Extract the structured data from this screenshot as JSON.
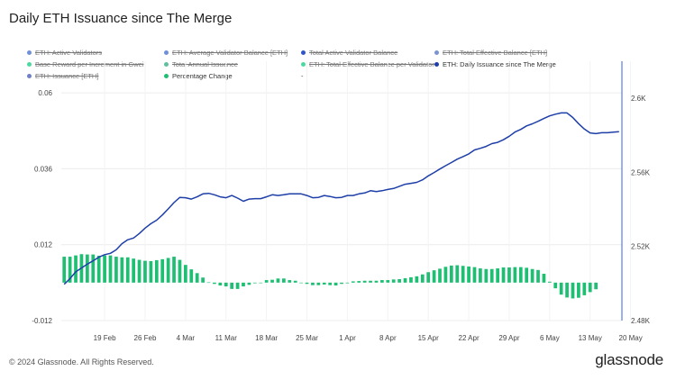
{
  "chart_data": {
    "type": "line",
    "title": "Daily ETH Issuance since The Merge",
    "legend": [
      {
        "label": "ETH: Active Validators",
        "color": "#6f8fd8",
        "active": false
      },
      {
        "label": "ETH: Average Validator Balance [ETH]",
        "color": "#6f8fd8",
        "active": false
      },
      {
        "label": "Total Active Validator Balance",
        "color": "#2f55c6",
        "active": false
      },
      {
        "label": "ETH: Total Effective Balance [ETH]",
        "color": "#7d94d0",
        "active": false
      },
      {
        "label": "Base Reward per Increment in Gwei",
        "color": "#4dd8a0",
        "active": false
      },
      {
        "label": "Total Annual Issuance",
        "color": "#5fbfa0",
        "active": false
      },
      {
        "label": "ETH: Total Effective Balance per Validator",
        "color": "#4dd8a0",
        "active": false
      },
      {
        "label": "ETH: Daily Issuance since The Merge",
        "color": "#1e3fa8",
        "active": true
      },
      {
        "label": "ETH: Issuance [ETH]",
        "color": "#6f7fc8",
        "active": false
      },
      {
        "label": "Percentage Change",
        "color": "#1fbf73",
        "active": true
      },
      {
        "label": "-",
        "color": "",
        "active": true
      }
    ],
    "x_ticks": [
      "19 Feb",
      "26 Feb",
      "4 Mar",
      "11 Mar",
      "18 Mar",
      "25 Mar",
      "1 Apr",
      "8 Apr",
      "15 Apr",
      "22 Apr",
      "29 Apr",
      "6 May",
      "13 May",
      "20 May"
    ],
    "start_date": "2024-02-12",
    "left_axis": {
      "ticks": [
        "0.06",
        "0.036",
        "0.012",
        "-0.012"
      ],
      "tick_values": [
        0.06,
        0.036,
        0.012,
        -0.012
      ],
      "range": [
        -0.012,
        0.07
      ]
    },
    "right_axis": {
      "ticks": [
        "2.6K",
        "2.56K",
        "2.52K",
        "2.48K"
      ],
      "tick_values": [
        2600,
        2560,
        2520,
        2480
      ],
      "range": [
        2480,
        2620
      ]
    },
    "series": [
      {
        "name": "ETH: Daily Issuance since The Merge",
        "axis": "right",
        "color": "#1e3fa8",
        "values": [
          2499.6,
          2502.6,
          2506.3,
          2508.4,
          2510.5,
          2512.3,
          2514.2,
          2515.6,
          2516.3,
          2518.2,
          2521.5,
          2523.6,
          2524.6,
          2527.0,
          2529.9,
          2532.3,
          2534.2,
          2537.0,
          2540.3,
          2543.7,
          2546.5,
          2546.3,
          2545.6,
          2546.8,
          2548.4,
          2548.7,
          2547.9,
          2546.8,
          2546.3,
          2547.5,
          2546.1,
          2544.4,
          2545.6,
          2545.8,
          2545.8,
          2546.8,
          2547.9,
          2547.5,
          2547.9,
          2548.4,
          2548.4,
          2548.4,
          2547.5,
          2546.3,
          2546.5,
          2547.5,
          2547.0,
          2546.3,
          2546.5,
          2547.5,
          2547.5,
          2548.4,
          2548.9,
          2550.1,
          2549.6,
          2550.1,
          2550.8,
          2551.3,
          2552.5,
          2553.6,
          2554.1,
          2554.6,
          2556.0,
          2558.1,
          2559.9,
          2561.8,
          2563.6,
          2565.3,
          2567.1,
          2568.5,
          2570.0,
          2572.1,
          2573.0,
          2574.0,
          2575.5,
          2576.2,
          2577.6,
          2579.5,
          2581.8,
          2583.2,
          2585.1,
          2586.2,
          2587.6,
          2589.1,
          2590.5,
          2591.4,
          2592.1,
          2592.1,
          2589.6,
          2586.3,
          2583.4,
          2581.3,
          2580.9,
          2581.4,
          2581.4,
          2581.7,
          2582.0
        ]
      },
      {
        "name": "Percentage Change",
        "axis": "left",
        "color": "#1fbf73",
        "values": [
          0.0082,
          0.0082,
          0.0086,
          0.009,
          0.0089,
          0.0089,
          0.0085,
          0.0086,
          0.0086,
          0.0082,
          0.008,
          0.008,
          0.0076,
          0.0072,
          0.0069,
          0.0068,
          0.0071,
          0.0074,
          0.0078,
          0.0082,
          0.0072,
          0.0056,
          0.0042,
          0.003,
          0.0016,
          0.0001,
          -0.0004,
          -0.0009,
          -0.0012,
          -0.002,
          -0.002,
          -0.0012,
          -0.0007,
          -0.0002,
          0.0,
          0.0008,
          0.0009,
          0.0013,
          0.0013,
          0.0008,
          0.0006,
          0.0,
          -0.0004,
          -0.0008,
          -0.0008,
          -0.0006,
          -0.0008,
          -0.0009,
          -0.0004,
          -0.0002,
          0.0004,
          0.0005,
          0.0006,
          0.0006,
          0.0006,
          0.0008,
          0.0008,
          0.001,
          0.0011,
          0.0014,
          0.0017,
          0.002,
          0.0026,
          0.0033,
          0.0039,
          0.0044,
          0.005,
          0.0054,
          0.0055,
          0.0053,
          0.0051,
          0.0049,
          0.0045,
          0.0043,
          0.0043,
          0.0045,
          0.0048,
          0.0048,
          0.0049,
          0.0049,
          0.0047,
          0.0043,
          0.004,
          0.0028,
          0.0003,
          -0.0018,
          -0.0038,
          -0.0047,
          -0.005,
          -0.0048,
          -0.004,
          -0.003,
          -0.0021
        ]
      }
    ],
    "grid": true
  },
  "footer": "© 2024 Glassnode. All Rights Reserved.",
  "brand": "glassnode"
}
